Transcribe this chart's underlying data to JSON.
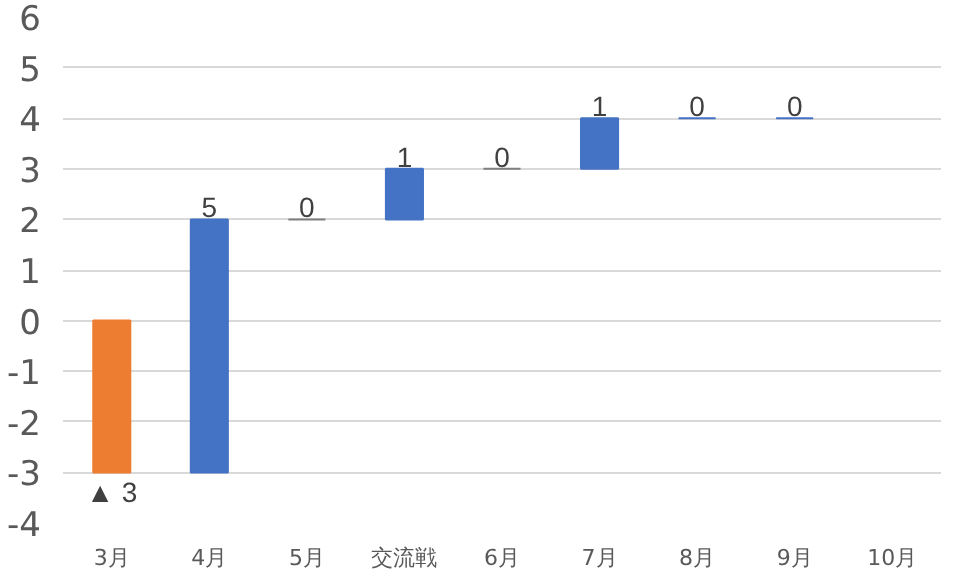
{
  "chart_data": {
    "type": "bar",
    "categories": [
      "3月",
      "4月",
      "5月",
      "交流戦",
      "6月",
      "7月",
      "8月",
      "9月",
      "10月"
    ],
    "values": [
      -3,
      5,
      0,
      1,
      0,
      1,
      0,
      0,
      null
    ],
    "base": [
      0,
      -3,
      2,
      2,
      3,
      3,
      4,
      4,
      null
    ],
    "colors": [
      "#ed7d31",
      "#4472c4",
      "#7f7f7f",
      "#4472c4",
      "#7f7f7f",
      "#4472c4",
      "#4472c4",
      "#4472c4",
      "#4472c4"
    ],
    "value_labels": [
      "▲ 3",
      "5",
      "0",
      "1",
      "0",
      "1",
      "0",
      "0",
      null
    ],
    "ylim": [
      -4,
      6
    ],
    "yticks": [
      -4,
      -3,
      -2,
      -1,
      0,
      1,
      2,
      3,
      4,
      5,
      6
    ],
    "grid": "y"
  }
}
